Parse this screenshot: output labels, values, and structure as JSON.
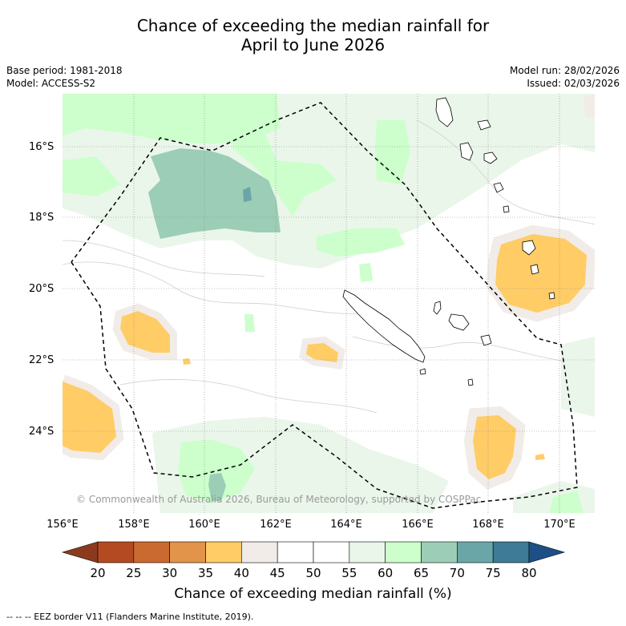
{
  "title_line1": "Chance of exceeding the median rainfall for",
  "title_line2": "April to June 2026",
  "base_period": "Base period: 1981-2018",
  "model": "Model: ACCESS-S2",
  "model_run": "Model run: 28/02/2026",
  "issued": "Issued: 02/03/2026",
  "credit": "© Commonwealth of Australia 2026, Bureau of Meteorology, supported by COSPPac",
  "lat_labels": [
    "16°S",
    "18°S",
    "20°S",
    "22°S",
    "24°S"
  ],
  "lon_labels": [
    "156°E",
    "158°E",
    "160°E",
    "162°E",
    "164°E",
    "166°E",
    "168°E",
    "170°E"
  ],
  "colorbar": {
    "title": "Chance of exceeding median rainfall (%)",
    "ticks": [
      "20",
      "25",
      "30",
      "35",
      "40",
      "45",
      "50",
      "55",
      "60",
      "65",
      "70",
      "75",
      "80"
    ],
    "colors": [
      "#b34a22",
      "#cb6a30",
      "#e2944a",
      "#ffcc66",
      "#f1ece8",
      "#ffffff",
      "#ffffff",
      "#eaf6ea",
      "#ccffcc",
      "#9ccdb6",
      "#6aa6a8",
      "#3d7b97"
    ],
    "under_color": "#8c3a1e",
    "over_color": "#1d4f86"
  },
  "footer": "--  --  -- EEZ border V11 (Flanders Marine Institute, 2019)."
}
